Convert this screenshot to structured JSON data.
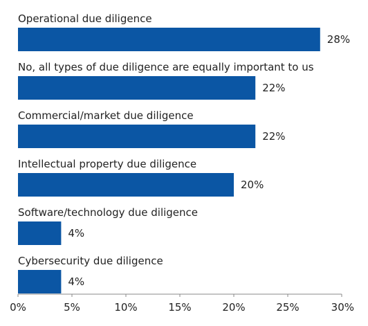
{
  "chart_data": {
    "type": "bar",
    "orientation": "horizontal",
    "categories": [
      "Operational due diligence",
      "No, all types of due diligence are equally important to us",
      "Commercial/market due diligence",
      "Intellectual property due diligence",
      "Software/technology due diligence",
      "Cybersecurity due diligence"
    ],
    "values": [
      28,
      22,
      22,
      20,
      4,
      4
    ],
    "value_labels": [
      "28%",
      "22%",
      "22%",
      "20%",
      "4%",
      "4%"
    ],
    "xlim": [
      0,
      30
    ],
    "x_ticks": [
      0,
      5,
      10,
      15,
      20,
      25,
      30
    ],
    "x_tick_labels": [
      "0%",
      "5%",
      "10%",
      "15%",
      "20%",
      "25%",
      "30%"
    ],
    "title": "",
    "xlabel": "",
    "ylabel": "",
    "grid": false,
    "legend": "none",
    "bar_color": "#0b56a4"
  }
}
